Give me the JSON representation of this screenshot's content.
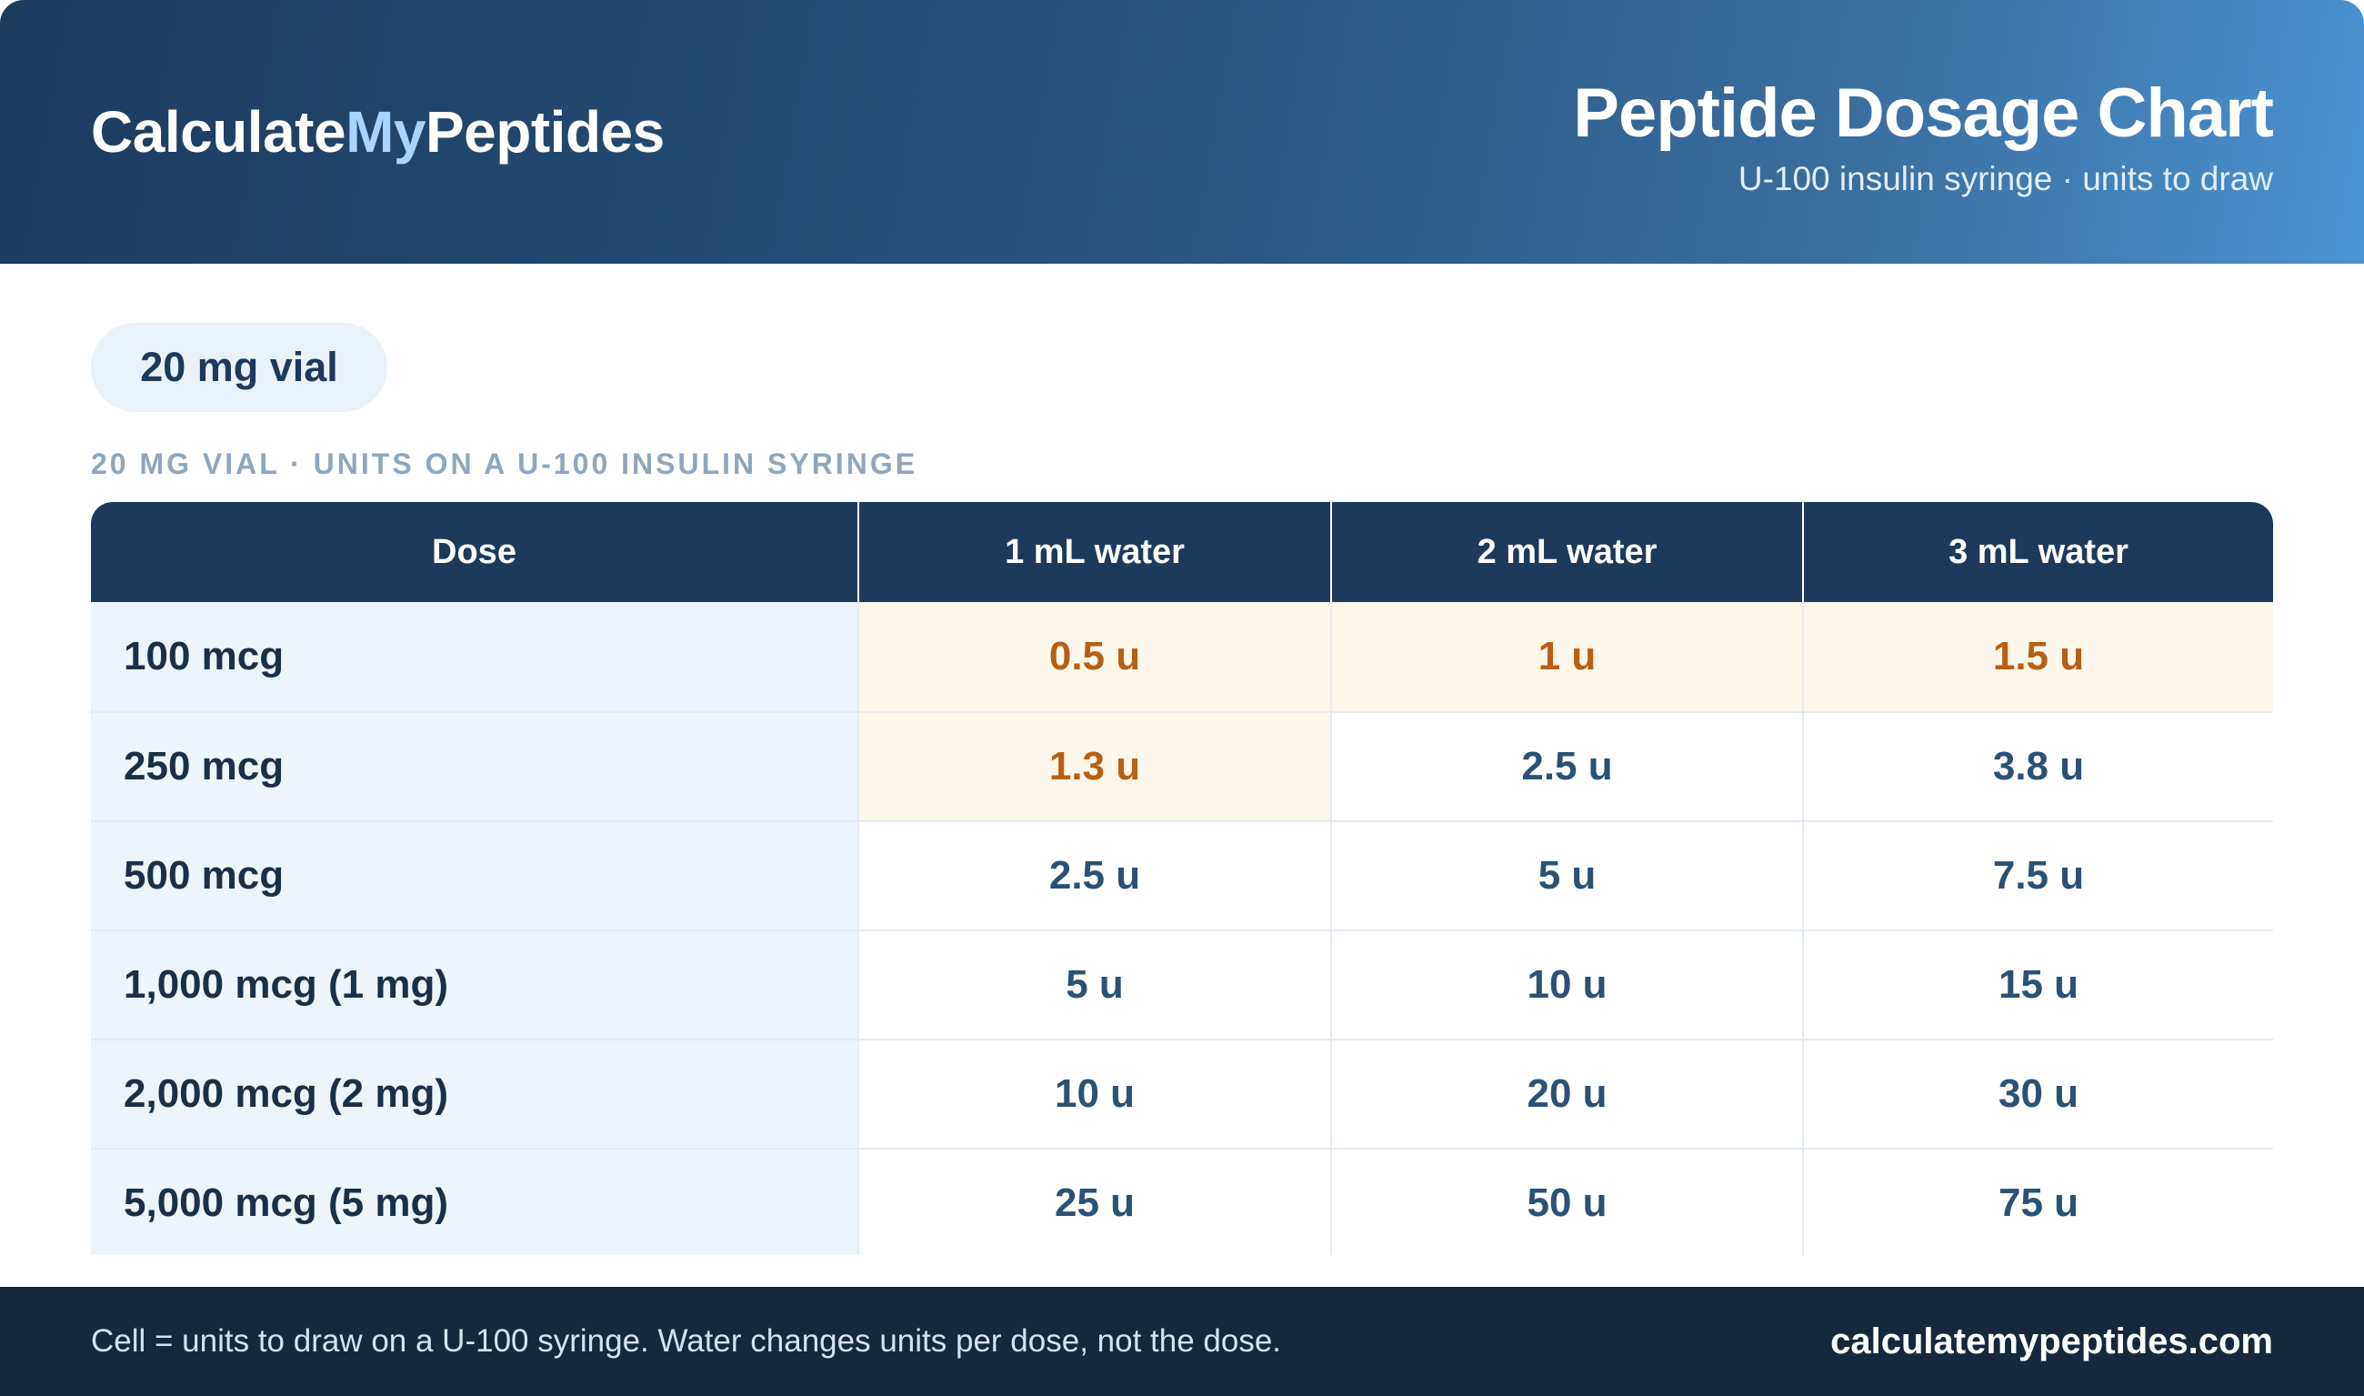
{
  "header": {
    "brand_part1": "Calculate",
    "brand_part2": "My",
    "brand_part3": "Peptides",
    "title": "Peptide Dosage Chart",
    "subtitle": "U-100 insulin syringe · units to draw"
  },
  "vial_pill": "20 mg vial",
  "section_label": "20 MG VIAL · UNITS ON A U-100 INSULIN SYRINGE",
  "table": {
    "headers": [
      "Dose",
      "1 mL water",
      "2 mL water",
      "3 mL water"
    ],
    "rows": [
      {
        "dose": "100 mcg",
        "cells": [
          "0.5 u",
          "1 u",
          "1.5 u"
        ]
      },
      {
        "dose": "250 mcg",
        "cells": [
          "1.3 u",
          "2.5 u",
          "3.8 u"
        ]
      },
      {
        "dose": "500 mcg",
        "cells": [
          "2.5 u",
          "5 u",
          "7.5 u"
        ]
      },
      {
        "dose": "1,000 mcg (1 mg)",
        "cells": [
          "5 u",
          "10 u",
          "15 u"
        ]
      },
      {
        "dose": "2,000 mcg (2 mg)",
        "cells": [
          "10 u",
          "20 u",
          "30 u"
        ]
      },
      {
        "dose": "5,000 mcg (5 mg)",
        "cells": [
          "25 u",
          "50 u",
          "75 u"
        ]
      }
    ]
  },
  "colors": {
    "header_dark": "#1c3a5c",
    "highlight_bg": "#fdf6ea",
    "highlight_text": "#b85f14",
    "value_text": "#2b5176",
    "brand_accent": "#a9d4ff",
    "footer_bg": "#15283e"
  },
  "footer": {
    "note": "Cell = units to draw on a U-100 syringe. Water changes units per dose, not the dose.",
    "url": "calculatemypeptides.com"
  }
}
